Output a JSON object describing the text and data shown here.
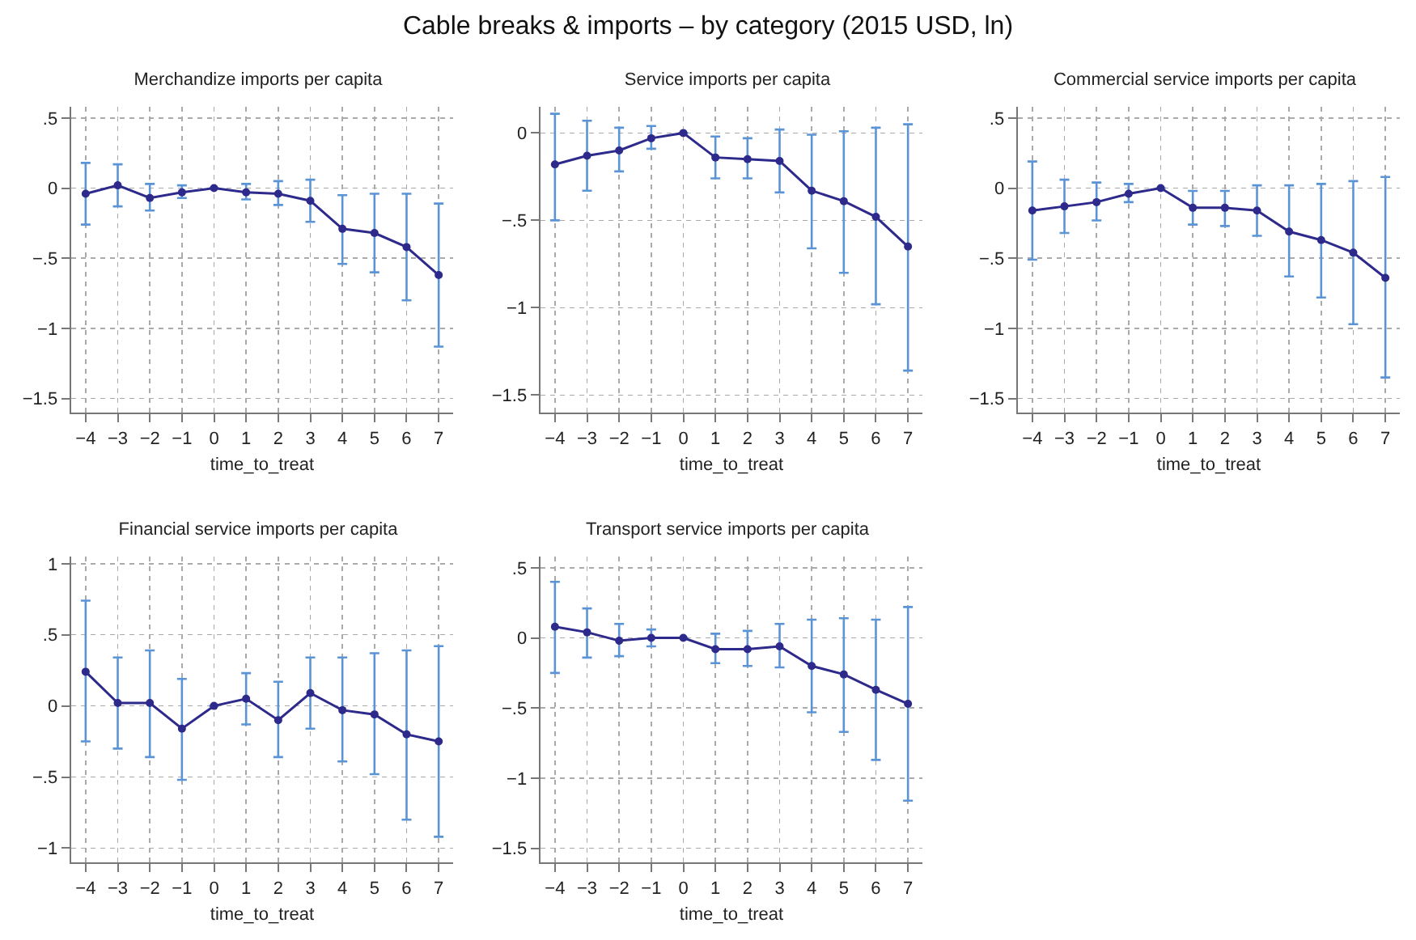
{
  "chart_data": [
    {
      "type": "line",
      "title": "Merchandize imports per capita",
      "xlabel": "time_to_treat",
      "annotations": [
        "Cable breaks & imports – by category (2015 USD, ln)"
      ],
      "marker": "circle",
      "grid": true,
      "x": [
        -4,
        -3,
        -2,
        -1,
        0,
        1,
        2,
        3,
        4,
        5,
        6,
        7
      ],
      "xlim": [
        -4.45,
        7.45
      ],
      "xticks": [
        {
          "value": -4,
          "label": "−4"
        },
        {
          "value": -3,
          "label": "−3"
        },
        {
          "value": -2,
          "label": "−2"
        },
        {
          "value": -1,
          "label": "−1"
        },
        0,
        1,
        2,
        3,
        4,
        5,
        6,
        7
      ],
      "ylim": [
        -1.6,
        0.58
      ],
      "yticks": [
        {
          "value": -1.5,
          "label": "−1.5"
        },
        {
          "value": -1,
          "label": "−1"
        },
        {
          "value": -0.5,
          "label": "−.5"
        },
        {
          "value": 0,
          "label": "0"
        },
        {
          "value": 0.5,
          "label": ".5"
        }
      ],
      "series": [
        {
          "color": "#2e2a8c",
          "values": [
            -0.04,
            0.02,
            -0.07,
            -0.03,
            0,
            -0.03,
            -0.04,
            -0.09,
            -0.29,
            -0.32,
            -0.42,
            -0.62
          ],
          "errors": [
            [
              -0.26,
              0.18
            ],
            [
              -0.13,
              0.17
            ],
            [
              -0.16,
              0.03
            ],
            [
              -0.07,
              0.02
            ],
            null,
            [
              -0.08,
              0.03
            ],
            [
              -0.12,
              0.05
            ],
            [
              -0.24,
              0.06
            ],
            [
              -0.54,
              -0.05
            ],
            [
              -0.6,
              -0.04
            ],
            [
              -0.8,
              -0.04
            ],
            [
              -1.13,
              -0.11
            ]
          ]
        }
      ]
    },
    {
      "type": "line",
      "title": "Service imports per capita",
      "xlabel": "time_to_treat",
      "marker": "circle",
      "grid": true,
      "x": [
        -4,
        -3,
        -2,
        -1,
        0,
        1,
        2,
        3,
        4,
        5,
        6,
        7
      ],
      "xlim": [
        -4.45,
        7.45
      ],
      "xticks": [
        {
          "value": -4,
          "label": "−4"
        },
        {
          "value": -3,
          "label": "−3"
        },
        {
          "value": -2,
          "label": "−2"
        },
        {
          "value": -1,
          "label": "−1"
        },
        0,
        1,
        2,
        3,
        4,
        5,
        6,
        7
      ],
      "ylim": [
        -1.6,
        0.15
      ],
      "yticks": [
        {
          "value": -1.5,
          "label": "−1.5"
        },
        {
          "value": -1,
          "label": "−1"
        },
        {
          "value": -0.5,
          "label": "−.5"
        },
        {
          "value": 0,
          "label": "0"
        }
      ],
      "series": [
        {
          "color": "#2e2a8c",
          "values": [
            -0.18,
            -0.13,
            -0.1,
            -0.03,
            0,
            -0.14,
            -0.15,
            -0.16,
            -0.33,
            -0.39,
            -0.48,
            -0.65
          ],
          "errors": [
            [
              -0.5,
              0.11
            ],
            [
              -0.33,
              0.07
            ],
            [
              -0.22,
              0.03
            ],
            [
              -0.09,
              0.04
            ],
            null,
            [
              -0.26,
              -0.02
            ],
            [
              -0.26,
              -0.03
            ],
            [
              -0.34,
              0.02
            ],
            [
              -0.66,
              -0.01
            ],
            [
              -0.8,
              0.01
            ],
            [
              -0.98,
              0.03
            ],
            [
              -1.36,
              0.05
            ]
          ]
        }
      ]
    },
    {
      "type": "line",
      "title": "Commercial service imports per capita",
      "xlabel": "time_to_treat",
      "marker": "circle",
      "grid": true,
      "x": [
        -4,
        -3,
        -2,
        -1,
        0,
        1,
        2,
        3,
        4,
        5,
        6,
        7
      ],
      "xlim": [
        -4.45,
        7.45
      ],
      "xticks": [
        {
          "value": -4,
          "label": "−4"
        },
        {
          "value": -3,
          "label": "−3"
        },
        {
          "value": -2,
          "label": "−2"
        },
        {
          "value": -1,
          "label": "−1"
        },
        0,
        1,
        2,
        3,
        4,
        5,
        6,
        7
      ],
      "ylim": [
        -1.6,
        0.58
      ],
      "yticks": [
        {
          "value": -1.5,
          "label": "−1.5"
        },
        {
          "value": -1,
          "label": "−1"
        },
        {
          "value": -0.5,
          "label": "−.5"
        },
        {
          "value": 0,
          "label": "0"
        },
        {
          "value": 0.5,
          "label": ".5"
        }
      ],
      "series": [
        {
          "color": "#2e2a8c",
          "values": [
            -0.16,
            -0.13,
            -0.1,
            -0.04,
            0,
            -0.14,
            -0.14,
            -0.16,
            -0.31,
            -0.37,
            -0.46,
            -0.64
          ],
          "errors": [
            [
              -0.51,
              0.19
            ],
            [
              -0.32,
              0.06
            ],
            [
              -0.23,
              0.04
            ],
            [
              -0.1,
              0.03
            ],
            null,
            [
              -0.26,
              -0.02
            ],
            [
              -0.27,
              -0.02
            ],
            [
              -0.34,
              0.02
            ],
            [
              -0.63,
              0.02
            ],
            [
              -0.78,
              0.03
            ],
            [
              -0.97,
              0.05
            ],
            [
              -1.35,
              0.08
            ]
          ]
        }
      ]
    },
    {
      "type": "line",
      "title": "Financial service imports per capita",
      "xlabel": "time_to_treat",
      "marker": "circle",
      "grid": true,
      "x": [
        -4,
        -3,
        -2,
        -1,
        0,
        1,
        2,
        3,
        4,
        5,
        6,
        7
      ],
      "xlim": [
        -4.45,
        7.45
      ],
      "xticks": [
        {
          "value": -4,
          "label": "−4"
        },
        {
          "value": -3,
          "label": "−3"
        },
        {
          "value": -2,
          "label": "−2"
        },
        {
          "value": -1,
          "label": "−1"
        },
        0,
        1,
        2,
        3,
        4,
        5,
        6,
        7
      ],
      "ylim": [
        -1.1,
        1.05
      ],
      "yticks": [
        {
          "value": -1,
          "label": "−1"
        },
        {
          "value": -0.5,
          "label": "−.5"
        },
        {
          "value": 0,
          "label": "0"
        },
        {
          "value": 0.5,
          "label": ".5"
        },
        {
          "value": 1,
          "label": "1"
        }
      ],
      "series": [
        {
          "color": "#2e2a8c",
          "values": [
            0.24,
            0.02,
            0.02,
            -0.16,
            0,
            0.05,
            -0.1,
            0.09,
            -0.03,
            -0.06,
            -0.2,
            -0.25
          ],
          "errors": [
            [
              -0.25,
              0.74
            ],
            [
              -0.3,
              0.34
            ],
            [
              -0.36,
              0.39
            ],
            [
              -0.52,
              0.19
            ],
            null,
            [
              -0.13,
              0.23
            ],
            [
              -0.36,
              0.17
            ],
            [
              -0.16,
              0.34
            ],
            [
              -0.39,
              0.34
            ],
            [
              -0.48,
              0.37
            ],
            [
              -0.8,
              0.39
            ],
            [
              -0.92,
              0.42
            ]
          ]
        }
      ]
    },
    {
      "type": "line",
      "title": "Transport service imports per capita",
      "xlabel": "time_to_treat",
      "marker": "circle",
      "grid": true,
      "x": [
        -4,
        -3,
        -2,
        -1,
        0,
        1,
        2,
        3,
        4,
        5,
        6,
        7
      ],
      "xlim": [
        -4.45,
        7.45
      ],
      "xticks": [
        {
          "value": -4,
          "label": "−4"
        },
        {
          "value": -3,
          "label": "−3"
        },
        {
          "value": -2,
          "label": "−2"
        },
        {
          "value": -1,
          "label": "−1"
        },
        0,
        1,
        2,
        3,
        4,
        5,
        6,
        7
      ],
      "ylim": [
        -1.6,
        0.58
      ],
      "yticks": [
        {
          "value": -1.5,
          "label": "−1.5"
        },
        {
          "value": -1,
          "label": "−1"
        },
        {
          "value": -0.5,
          "label": "−.5"
        },
        {
          "value": 0,
          "label": "0"
        },
        {
          "value": 0.5,
          "label": ".5"
        }
      ],
      "series": [
        {
          "color": "#2e2a8c",
          "values": [
            0.08,
            0.04,
            -0.02,
            0,
            0,
            -0.08,
            -0.08,
            -0.06,
            -0.2,
            -0.26,
            -0.37,
            -0.47
          ],
          "errors": [
            [
              -0.25,
              0.4
            ],
            [
              -0.14,
              0.21
            ],
            [
              -0.13,
              0.1
            ],
            [
              -0.06,
              0.06
            ],
            null,
            [
              -0.18,
              0.03
            ],
            [
              -0.2,
              0.05
            ],
            [
              -0.21,
              0.1
            ],
            [
              -0.53,
              0.13
            ],
            [
              -0.67,
              0.14
            ],
            [
              -0.87,
              0.13
            ],
            [
              -1.16,
              0.22
            ]
          ]
        }
      ]
    }
  ]
}
